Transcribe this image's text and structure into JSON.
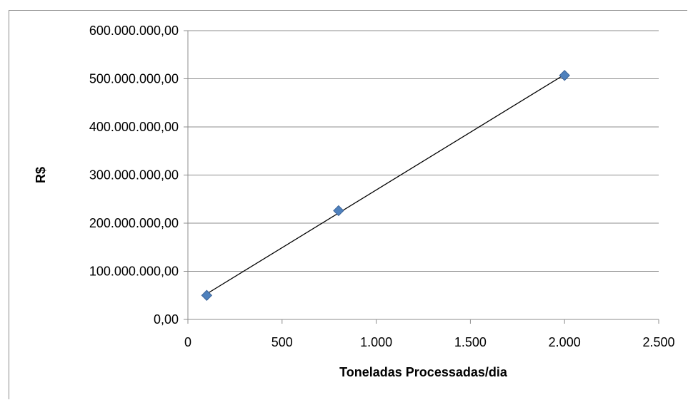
{
  "chart_data": {
    "type": "scatter",
    "title": "",
    "xlabel": "Toneladas  Processadas/dia",
    "ylabel": "R$",
    "xlim": [
      0,
      2500
    ],
    "ylim": [
      0,
      600000000
    ],
    "x_ticks": [
      "0",
      "500",
      "1.000",
      "1.500",
      "2.000",
      "2.500"
    ],
    "y_ticks": [
      "0,00",
      "100.000.000,00",
      "200.000.000,00",
      "300.000.000,00",
      "400.000.000,00",
      "500.000.000,00",
      "600.000.000,00"
    ],
    "grid": "horizontal",
    "series": [
      {
        "x": [
          100,
          800,
          2000
        ],
        "y": [
          50000000,
          226000000,
          507000000
        ],
        "marker": "diamond",
        "color": "#4f81bd",
        "trendline": {
          "type": "linear",
          "color": "#000000"
        }
      }
    ]
  }
}
